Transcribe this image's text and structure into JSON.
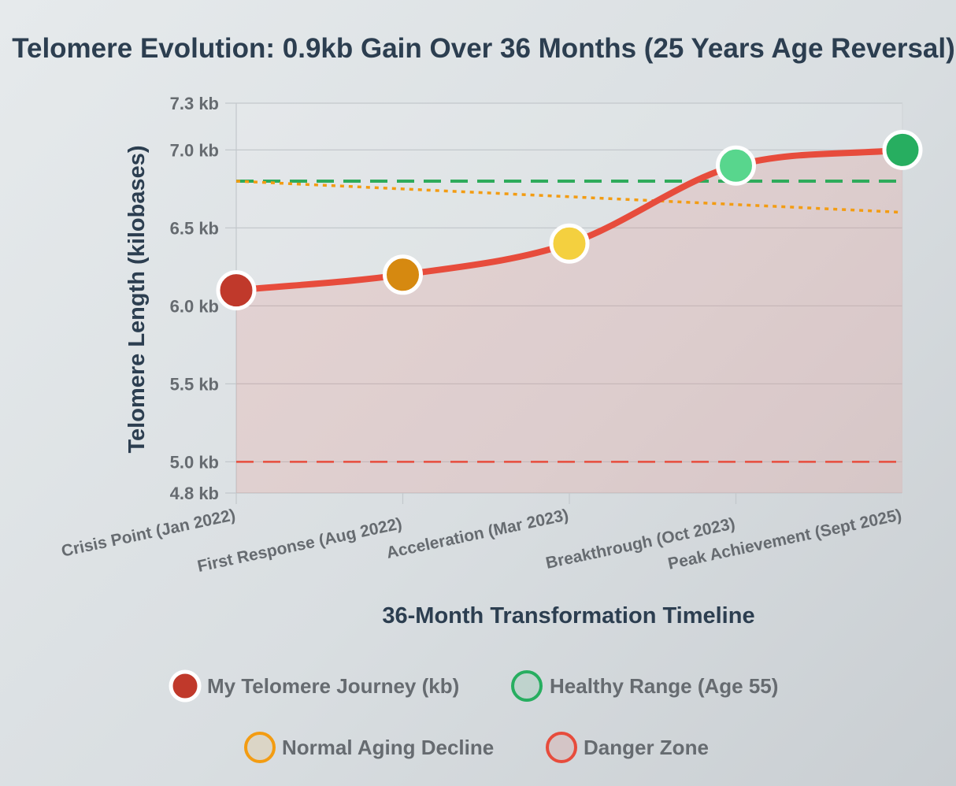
{
  "chart_data": {
    "type": "line",
    "title": "Telomere Evolution: 0.9kb Gain Over 36 Months (25 Years Age Reversal)",
    "xlabel": "36-Month Transformation Timeline",
    "ylabel": "Telomere Length (kilobases)",
    "categories": [
      "Crisis Point (Jan 2022)",
      "First Response (Aug 2022)",
      "Acceleration (Mar 2023)",
      "Breakthrough (Oct 2023)",
      "Peak Achievement (Sept 2025)"
    ],
    "ylim": [
      4.8,
      7.3
    ],
    "yticks": [
      {
        "value": 7.3,
        "label": "7.3 kb"
      },
      {
        "value": 7.0,
        "label": "7.0 kb"
      },
      {
        "value": 6.5,
        "label": "6.5 kb"
      },
      {
        "value": 6.0,
        "label": "6.0 kb"
      },
      {
        "value": 5.5,
        "label": "5.5 kb"
      },
      {
        "value": 5.0,
        "label": "5.0 kb"
      },
      {
        "value": 4.8,
        "label": "4.8 kb"
      }
    ],
    "series": [
      {
        "name": "My Telomere Journey (kb)",
        "values": [
          6.1,
          6.2,
          6.4,
          6.9,
          7.0
        ],
        "color": "#e74c3c",
        "point_colors": [
          "#c0392b",
          "#d68910",
          "#f4d03f",
          "#58d68d",
          "#27ae60"
        ],
        "fill": true
      },
      {
        "name": "Healthy Range (Age 55)",
        "values": [
          6.8,
          6.8,
          6.8,
          6.8,
          6.8
        ],
        "color": "#27ae60",
        "style": "dashed"
      },
      {
        "name": "Normal Aging Decline",
        "values": [
          6.8,
          6.75,
          6.7,
          6.65,
          6.6
        ],
        "color": "#f39c12",
        "style": "dotted"
      },
      {
        "name": "Danger Zone",
        "values": [
          5.0,
          5.0,
          5.0,
          5.0,
          5.0
        ],
        "color": "#e74c3c",
        "style": "dashed"
      }
    ],
    "legend": {
      "position": "bottom",
      "items": [
        {
          "label": "My Telomere Journey (kb)",
          "color": "#c0392b",
          "style": "filled"
        },
        {
          "label": "Healthy Range (Age 55)",
          "color": "#27ae60",
          "style": "ring"
        },
        {
          "label": "Normal Aging Decline",
          "color": "#f39c12",
          "style": "ring"
        },
        {
          "label": "Danger Zone",
          "color": "#e74c3c",
          "style": "ring"
        }
      ]
    },
    "grid": true
  }
}
